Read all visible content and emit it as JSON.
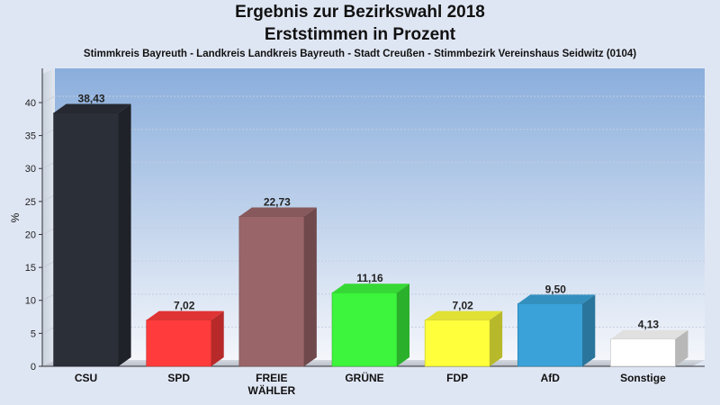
{
  "chart_data": {
    "type": "bar",
    "title": "Ergebnis zur Bezirkswahl 2018",
    "subtitle": "Erststimmen in Prozent",
    "subtitle2": "Stimmkreis Bayreuth - Landkreis Landkreis Bayreuth - Stadt Creußen - Stimmbezirk Vereinshaus Seidwitz (0104)",
    "ylabel": "%",
    "ylim": [
      0,
      43
    ],
    "yticks": [
      "0",
      "5",
      "10",
      "15",
      "20",
      "25",
      "30",
      "35",
      "40"
    ],
    "grid": true,
    "categories": [
      {
        "label": [
          "CSU"
        ],
        "value": 38.43,
        "value_label": "38,43",
        "color": "#2b2f38"
      },
      {
        "label": [
          "SPD"
        ],
        "value": 7.02,
        "value_label": "7,02",
        "color": "#ff3b3b"
      },
      {
        "label": [
          "FREIE",
          "WÄHLER"
        ],
        "value": 22.73,
        "value_label": "22,73",
        "color": "#9a6568"
      },
      {
        "label": [
          "GRÜNE"
        ],
        "value": 11.16,
        "value_label": "11,16",
        "color": "#3cf53c"
      },
      {
        "label": [
          "FDP"
        ],
        "value": 7.02,
        "value_label": "7,02",
        "color": "#ffff3c"
      },
      {
        "label": [
          "AfD"
        ],
        "value": 9.5,
        "value_label": "9,50",
        "color": "#3aa2d8"
      },
      {
        "label": [
          "Sonstige"
        ],
        "value": 4.13,
        "value_label": "4,13",
        "color": "#ffffff"
      }
    ]
  }
}
